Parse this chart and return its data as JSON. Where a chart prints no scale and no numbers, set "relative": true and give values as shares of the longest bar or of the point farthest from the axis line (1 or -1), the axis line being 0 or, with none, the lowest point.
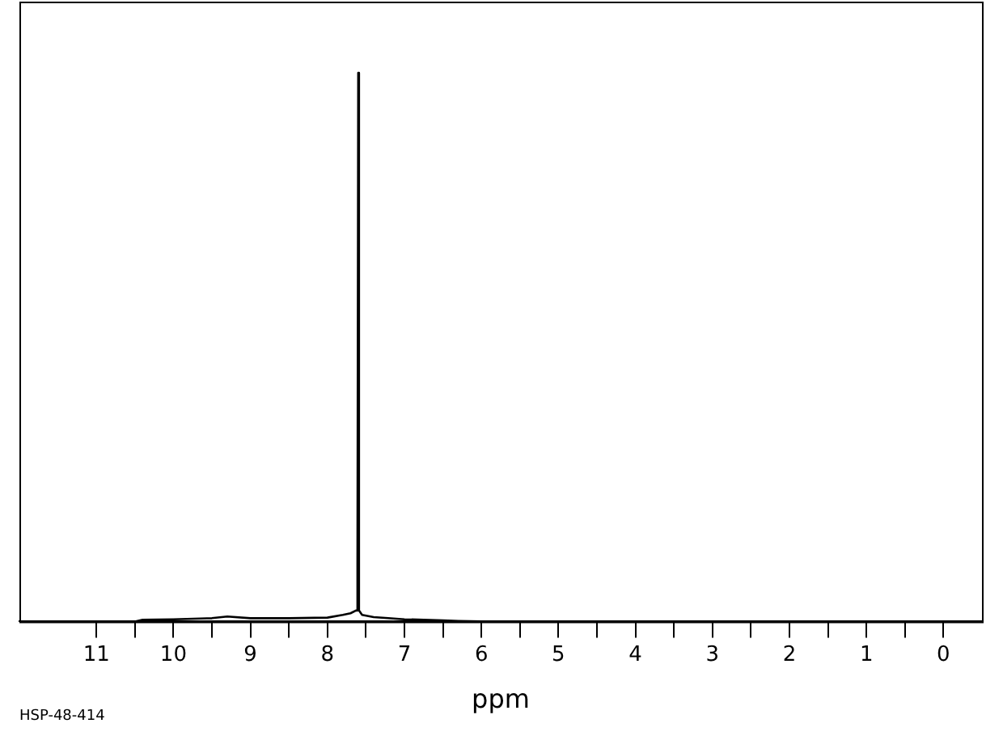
{
  "chart_data": {
    "type": "line",
    "relative": true,
    "xlabel": "ppm",
    "annotations": [
      "HSP-48-414"
    ],
    "xlim": [
      12,
      -0.5
    ],
    "xticks": [
      11,
      {
        "value": 10.5,
        "label": null
      },
      10,
      {
        "value": 9.5,
        "label": null
      },
      9,
      {
        "value": 8.5,
        "label": null
      },
      8,
      {
        "value": 7.5,
        "label": null
      },
      7,
      {
        "value": 6.5,
        "label": null
      },
      6,
      {
        "value": 5.5,
        "label": null
      },
      5,
      {
        "value": 4.5,
        "label": null
      },
      4,
      {
        "value": 3.5,
        "label": null
      },
      3,
      {
        "value": 2.5,
        "label": null
      },
      2,
      {
        "value": 1.5,
        "label": null
      },
      1,
      {
        "value": 0.5,
        "label": null
      },
      0
    ],
    "grid": false,
    "legend": false,
    "marker": "none",
    "line_style": "solid",
    "series": [
      {
        "color": "#000000",
        "x": [
          12,
          10.5,
          10.4,
          10.0,
          9.5,
          9.3,
          9.0,
          8.5,
          8.0,
          7.8,
          7.7,
          7.63,
          7.61,
          7.6,
          7.59,
          7.55,
          7.4,
          7.0,
          6.5,
          6.3,
          6.0,
          -0.5
        ],
        "values": [
          0,
          0,
          0.003,
          0.004,
          0.006,
          0.009,
          0.006,
          0.006,
          0.007,
          0.012,
          0.015,
          0.02,
          0.1,
          1,
          0.02,
          0.012,
          0.008,
          0.004,
          0.002,
          0.001,
          0,
          0
        ]
      }
    ]
  }
}
